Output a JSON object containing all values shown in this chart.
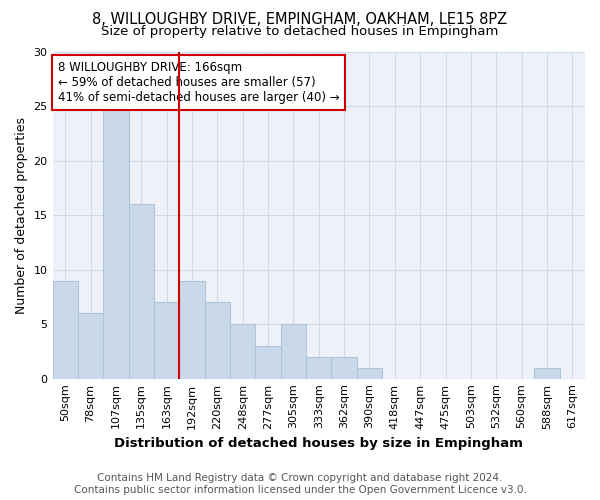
{
  "title_line1": "8, WILLOUGHBY DRIVE, EMPINGHAM, OAKHAM, LE15 8PZ",
  "title_line2": "Size of property relative to detached houses in Empingham",
  "xlabel": "Distribution of detached houses by size in Empingham",
  "ylabel": "Number of detached properties",
  "bar_labels": [
    "50sqm",
    "78sqm",
    "107sqm",
    "135sqm",
    "163sqm",
    "192sqm",
    "220sqm",
    "248sqm",
    "277sqm",
    "305sqm",
    "333sqm",
    "362sqm",
    "390sqm",
    "418sqm",
    "447sqm",
    "475sqm",
    "503sqm",
    "532sqm",
    "560sqm",
    "588sqm",
    "617sqm"
  ],
  "bar_values": [
    9,
    6,
    25,
    16,
    7,
    9,
    7,
    5,
    3,
    5,
    2,
    2,
    1,
    0,
    0,
    0,
    0,
    0,
    0,
    1,
    0
  ],
  "bar_color": "#c9d9ea",
  "bar_edgecolor": "#aec6d8",
  "vline_color": "#cc0000",
  "annotation_text_line1": "8 WILLOUGHBY DRIVE: 166sqm",
  "annotation_text_line2": "← 59% of detached houses are smaller (57)",
  "annotation_text_line3": "41% of semi-detached houses are larger (40) →",
  "annotation_box_edgecolor": "#cc0000",
  "annotation_box_facecolor": "white",
  "ylim": [
    0,
    30
  ],
  "yticks": [
    0,
    5,
    10,
    15,
    20,
    25,
    30
  ],
  "grid_color": "#d0dae8",
  "background_color": "#eef2f8",
  "title_fontsize": 10.5,
  "subtitle_fontsize": 9.5,
  "tick_fontsize": 8,
  "ylabel_fontsize": 9,
  "xlabel_fontsize": 9.5,
  "annotation_fontsize": 8.5,
  "footer_fontsize": 7.5,
  "footer_line1": "Contains HM Land Registry data © Crown copyright and database right 2024.",
  "footer_line2": "Contains public sector information licensed under the Open Government Licence v3.0."
}
